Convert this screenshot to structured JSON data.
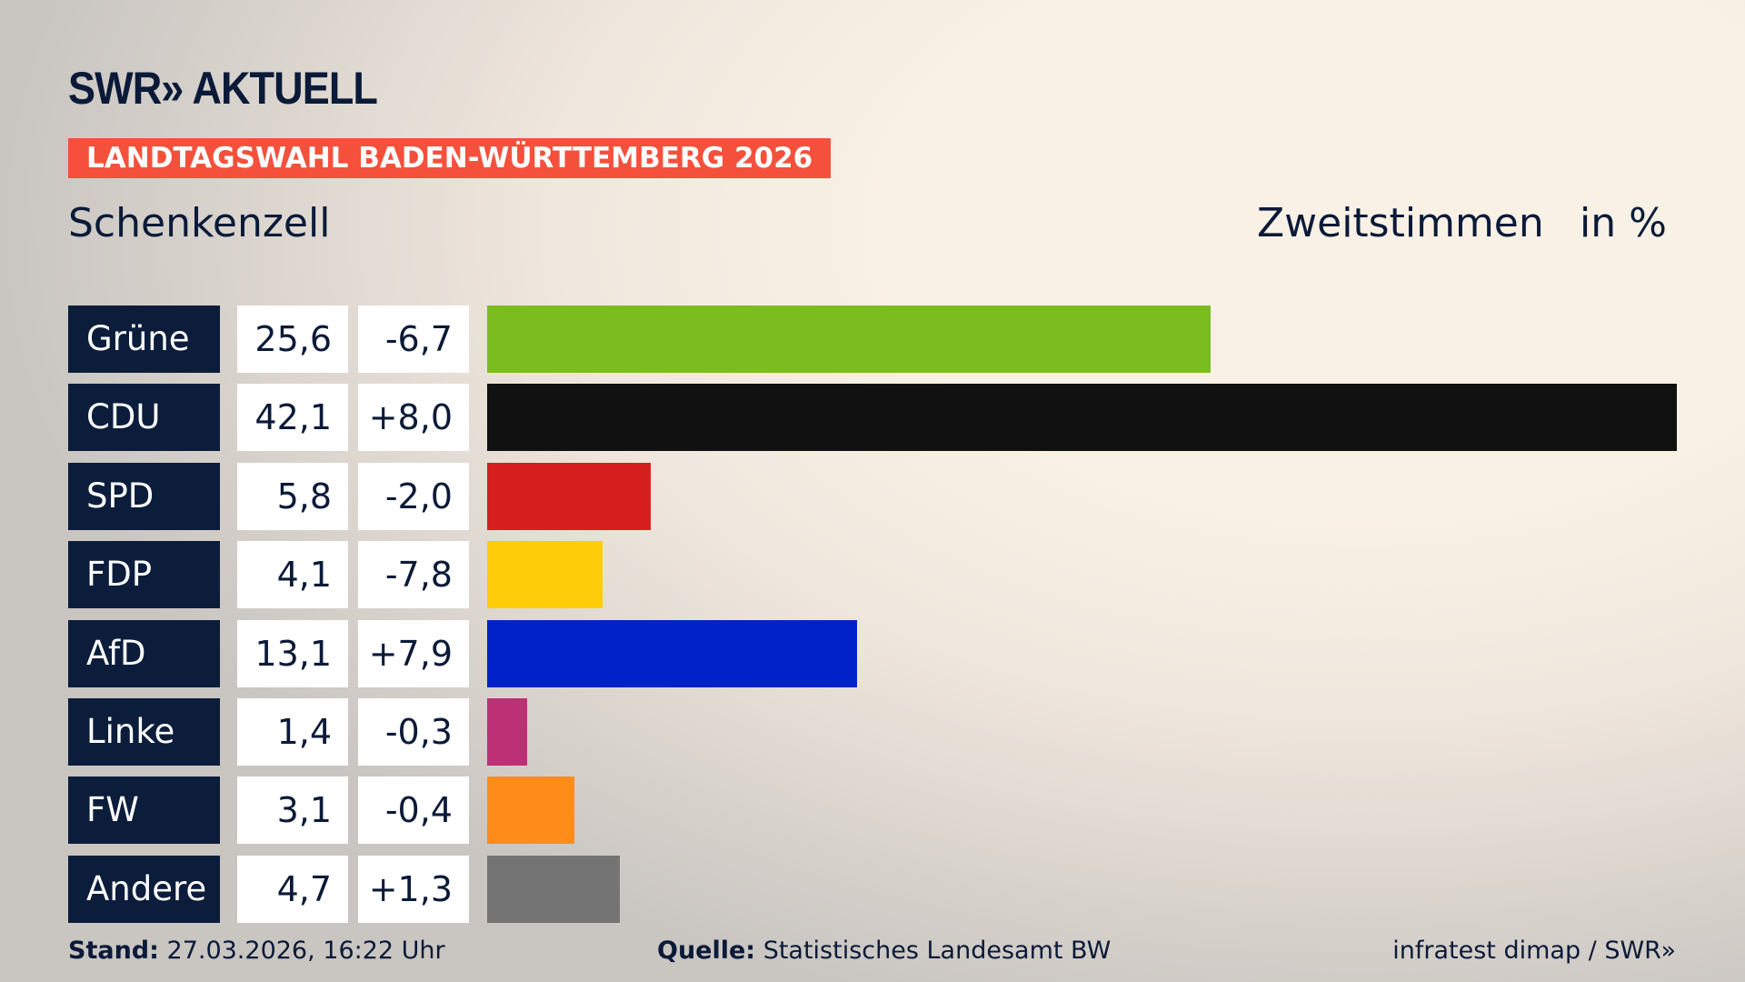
{
  "header": {
    "logo": "SWR» AKTUELL",
    "banner": "LANDTAGSWAHL BADEN-WÜRTTEMBERG 2026",
    "place": "Schenkenzell",
    "measure": "Zweitstimmen",
    "unit": "in %"
  },
  "chart_data": {
    "type": "bar",
    "orientation": "horizontal",
    "title": "Schenkenzell",
    "xlabel": "",
    "ylabel": "Zweitstimmen in %",
    "xlim": [
      0,
      42.1
    ],
    "categories": [
      "Grüne",
      "CDU",
      "SPD",
      "FDP",
      "AfD",
      "Linke",
      "FW",
      "Andere"
    ],
    "values": [
      25.6,
      42.1,
      5.8,
      4.1,
      13.1,
      1.4,
      3.1,
      4.7
    ],
    "value_labels": [
      "25,6",
      "42,1",
      "5,8",
      "4,1",
      "13,1",
      "1,4",
      "3,1",
      "4,7"
    ],
    "diffs": [
      "-6,7",
      "+8,0",
      "-2,0",
      "-7,8",
      "+7,9",
      "-0,3",
      "-0,4",
      "+1,3"
    ],
    "colors": [
      "#7bbd1e",
      "#111111",
      "#d71f1f",
      "#ffcc0a",
      "#0022c8",
      "#be3075",
      "#ff8c1a",
      "#747474"
    ]
  },
  "footer": {
    "stand_label": "Stand:",
    "stand": "27.03.2026, 16:22 Uhr",
    "source_label": "Quelle:",
    "source": "Statistisches Landesamt BW",
    "credit": "infratest dimap / SWR»"
  }
}
